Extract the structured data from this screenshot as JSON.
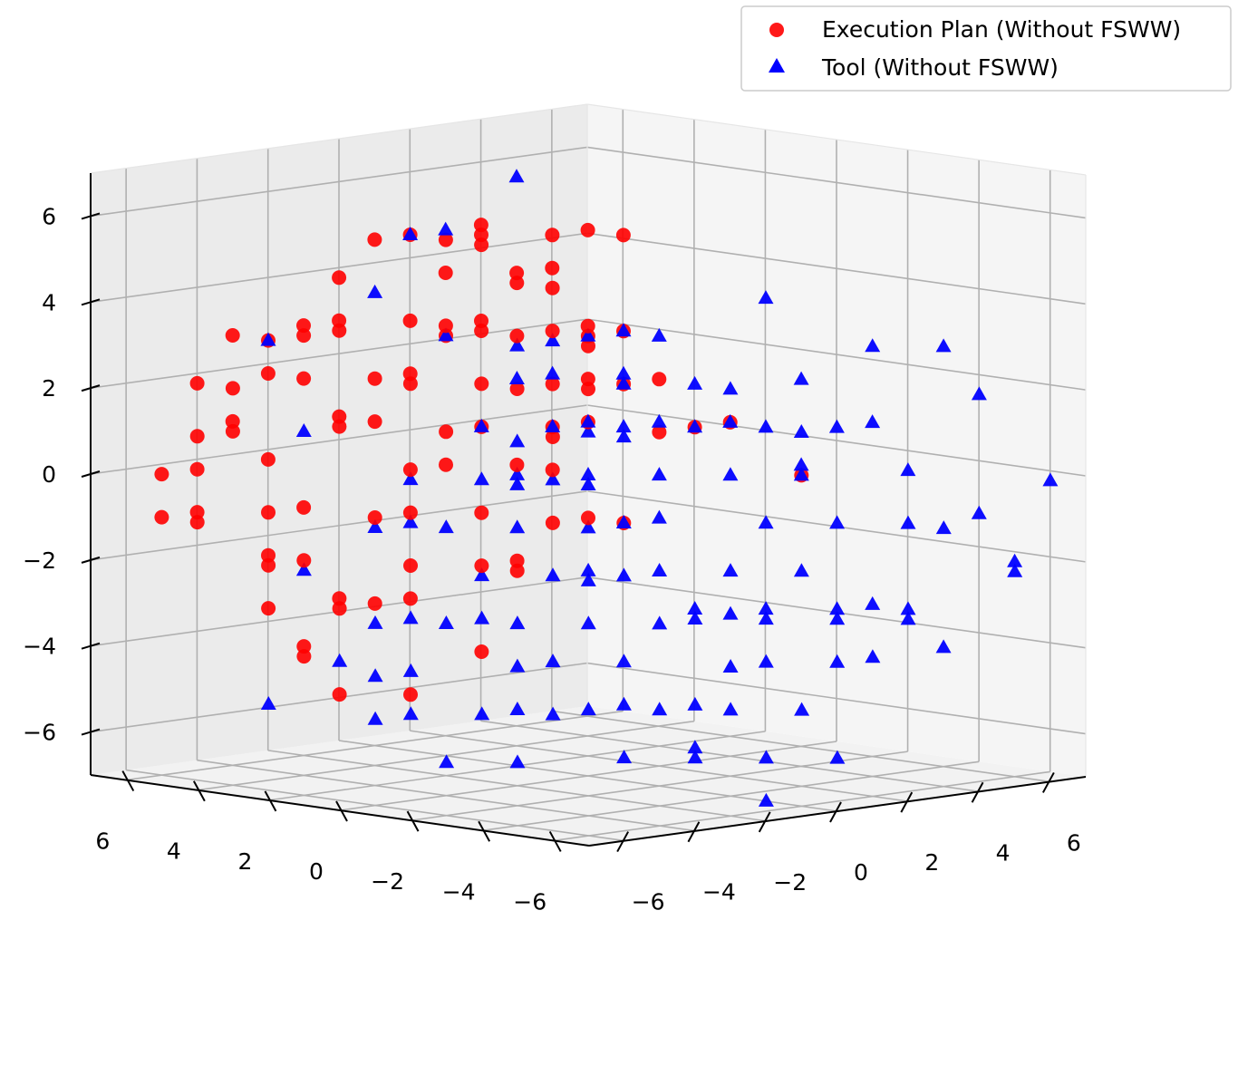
{
  "chart_data": {
    "type": "scatter",
    "projection": "3d",
    "title": "",
    "xlabel": "",
    "ylabel": "",
    "zlabel": "",
    "xlim": [
      -7,
      7
    ],
    "ylim": [
      -7,
      7
    ],
    "zlim": [
      -7,
      7
    ],
    "grid": true,
    "legend_position": "top-right",
    "axis_ticks": {
      "x": [
        "−6",
        "−4",
        "−2",
        "0",
        "2",
        "4",
        "6"
      ],
      "y": [
        "6",
        "4",
        "2",
        "0",
        "−2",
        "−4",
        "−6"
      ],
      "z": [
        "−6",
        "−4",
        "−2",
        "0",
        "2",
        "4",
        "6"
      ]
    },
    "series": [
      {
        "name": "Execution Plan (Without FSWW)",
        "marker": "circle",
        "color": "#ff0000",
        "points": [
          [
            -1,
            6,
            4
          ],
          [
            0,
            5,
            5
          ],
          [
            1,
            5,
            4
          ],
          [
            -1,
            5,
            5
          ],
          [
            0,
            4,
            5
          ],
          [
            -2,
            6,
            3
          ],
          [
            -2,
            5,
            3
          ],
          [
            0,
            4,
            3
          ],
          [
            1,
            4,
            3
          ],
          [
            -3,
            6,
            2
          ],
          [
            -3,
            6,
            0
          ],
          [
            -4,
            6,
            1
          ],
          [
            -4,
            5,
            -1
          ],
          [
            -4,
            5,
            -2
          ],
          [
            -5,
            6,
            -1
          ],
          [
            -5,
            6,
            0
          ],
          [
            -5,
            5,
            1
          ],
          [
            -4,
            4,
            -2
          ],
          [
            -3,
            4,
            -3
          ],
          [
            -3,
            3,
            -3
          ],
          [
            -2,
            3,
            -1
          ],
          [
            -2,
            3,
            -3
          ],
          [
            -1,
            3,
            0
          ],
          [
            -1,
            2,
            -1
          ],
          [
            -1,
            1,
            -2
          ],
          [
            -2,
            2,
            1
          ],
          [
            -1,
            1,
            2
          ],
          [
            0,
            1,
            2
          ],
          [
            -1,
            0,
            1
          ],
          [
            0,
            0,
            2
          ],
          [
            1,
            1,
            3
          ],
          [
            1,
            0,
            2
          ],
          [
            2,
            0,
            2
          ],
          [
            2,
            -1,
            1
          ],
          [
            3,
            -1,
            1
          ],
          [
            3,
            -3,
            0
          ],
          [
            3,
            2,
            5
          ],
          [
            2,
            3,
            5
          ],
          [
            2,
            2,
            3
          ],
          [
            -3,
            5,
            3
          ],
          [
            -2,
            4,
            2
          ],
          [
            -4,
            3,
            -3
          ],
          [
            -5,
            4,
            -3
          ],
          [
            0,
            -1,
            -1
          ],
          [
            1,
            -1,
            1
          ],
          [
            -6,
            5,
            -1
          ],
          [
            -6,
            6,
            -1
          ],
          [
            -6,
            6,
            0
          ],
          [
            -6,
            5,
            1
          ],
          [
            -5,
            6,
            2
          ],
          [
            -5,
            5,
            2
          ],
          [
            -5,
            4,
            -2
          ],
          [
            -3,
            5,
            2
          ],
          [
            -3,
            4,
            1
          ],
          [
            -2,
            4,
            1
          ],
          [
            -2,
            3,
            0
          ],
          [
            -1,
            4,
            2
          ],
          [
            0,
            3,
            3
          ],
          [
            0,
            2,
            3
          ],
          [
            1,
            2,
            3
          ],
          [
            1,
            3,
            4
          ],
          [
            2,
            4,
            4
          ],
          [
            2,
            1,
            3
          ],
          [
            3,
            3,
            5
          ],
          [
            0,
            5,
            3
          ],
          [
            -1,
            6,
            3
          ],
          [
            -2,
            5,
            1
          ],
          [
            -3,
            5,
            -1
          ],
          [
            -4,
            4,
            -4
          ],
          [
            -4,
            3,
            -5
          ],
          [
            -3,
            2,
            -5
          ],
          [
            -2,
            1,
            -4
          ],
          [
            -2,
            1,
            -2
          ],
          [
            -2,
            0,
            -2
          ],
          [
            -1,
            0,
            -1
          ],
          [
            0,
            0,
            -1
          ],
          [
            0,
            2,
            0
          ],
          [
            0,
            1,
            0
          ],
          [
            1,
            1,
            1
          ],
          [
            -4,
            6,
            3
          ],
          [
            -4,
            5,
            3
          ],
          [
            0,
            3,
            5
          ],
          [
            1,
            4,
            5
          ],
          [
            2,
            5,
            5
          ],
          [
            3,
            4,
            4
          ],
          [
            -5,
            3,
            -4
          ],
          [
            -1,
            2,
            1
          ],
          [
            -2,
            3,
            2
          ],
          [
            0,
            1,
            1
          ],
          [
            0,
            0,
            3
          ],
          [
            1,
            2,
            4
          ],
          [
            1,
            1,
            2
          ],
          [
            -3,
            3,
            -1
          ],
          [
            -3,
            2,
            -2
          ],
          [
            -1,
            3,
            3
          ],
          [
            -1,
            2,
            2
          ]
        ]
      },
      {
        "name": "Tool (Without FSWW)",
        "marker": "triangle",
        "color": "#0000ff",
        "points": [
          [
            1,
            5,
            5
          ],
          [
            0,
            5,
            5
          ],
          [
            3,
            5,
            6
          ],
          [
            -4,
            5,
            3
          ],
          [
            -2,
            4,
            4
          ],
          [
            -1,
            3,
            3
          ],
          [
            -1,
            1,
            3
          ],
          [
            0,
            1,
            3
          ],
          [
            1,
            1,
            3
          ],
          [
            2,
            1,
            3
          ],
          [
            2,
            0,
            3
          ],
          [
            1,
            0,
            2
          ],
          [
            2,
            -1,
            2
          ],
          [
            3,
            -2,
            4
          ],
          [
            4,
            -4,
            3
          ],
          [
            5,
            -6,
            2
          ],
          [
            2,
            -2,
            2
          ],
          [
            0,
            0,
            1
          ],
          [
            0,
            -1,
            1
          ],
          [
            -1,
            0,
            0
          ],
          [
            -2,
            1,
            0
          ],
          [
            -3,
            2,
            -1
          ],
          [
            -2,
            0,
            -1
          ],
          [
            -3,
            0,
            -2
          ],
          [
            -4,
            1,
            -3
          ],
          [
            -5,
            2,
            -4
          ],
          [
            -6,
            3,
            -5
          ],
          [
            -5,
            0,
            -5
          ],
          [
            -4,
            -1,
            -5
          ],
          [
            -3,
            -1,
            -5
          ],
          [
            -2,
            -2,
            -5
          ],
          [
            -1,
            -2,
            -5
          ],
          [
            0,
            -3,
            -6
          ],
          [
            0,
            -3,
            -5
          ],
          [
            1,
            -2,
            -3
          ],
          [
            1,
            -3,
            -3
          ],
          [
            2,
            -3,
            -3
          ],
          [
            2,
            -4,
            -2
          ],
          [
            3,
            -4,
            -1
          ],
          [
            4,
            -5,
            -1
          ],
          [
            4,
            -6,
            -1
          ],
          [
            5,
            -7,
            -2
          ],
          [
            3,
            -6,
            -3
          ],
          [
            2,
            -5,
            -3
          ],
          [
            1,
            -4,
            -4
          ],
          [
            0,
            -4,
            -4
          ],
          [
            0,
            -2,
            -2
          ],
          [
            -1,
            -1,
            -2
          ],
          [
            -1,
            -1,
            -1
          ],
          [
            0,
            -1,
            -1
          ],
          [
            -2,
            -1,
            -2
          ],
          [
            -3,
            0,
            -3
          ],
          [
            -2,
            -1,
            -4
          ],
          [
            -1,
            -2,
            -4
          ],
          [
            -3,
            -1,
            -4
          ],
          [
            -1,
            -3,
            -5
          ],
          [
            0,
            -4,
            -5
          ],
          [
            1,
            -3,
            -2
          ],
          [
            2,
            -3,
            -1
          ],
          [
            3,
            -3,
            0
          ],
          [
            3,
            -3,
            1
          ],
          [
            2,
            -2,
            0
          ],
          [
            1,
            -1,
            0
          ],
          [
            1,
            -1,
            -1
          ],
          [
            0,
            0,
            0
          ],
          [
            -1,
            -1,
            0
          ],
          [
            -2,
            0,
            0
          ],
          [
            -4,
            4,
            1
          ],
          [
            -5,
            3,
            -2
          ],
          [
            -4,
            2,
            -1
          ],
          [
            -3,
            1,
            -1
          ],
          [
            -2,
            0,
            1
          ],
          [
            0,
            1,
            1
          ],
          [
            1,
            1,
            1
          ],
          [
            2,
            -1,
            1
          ],
          [
            3,
            -2,
            1
          ],
          [
            4,
            -3,
            1
          ],
          [
            5,
            -3,
            1
          ],
          [
            5,
            -4,
            0
          ],
          [
            6,
            -5,
            -1
          ],
          [
            4,
            -5,
            -3
          ],
          [
            3,
            -5,
            -4
          ],
          [
            2,
            -5,
            -4
          ],
          [
            1,
            -5,
            -5
          ],
          [
            0,
            -5,
            -6
          ],
          [
            -1,
            -3,
            -3
          ],
          [
            -2,
            -2,
            -3
          ],
          [
            -3,
            -2,
            -5
          ],
          [
            -4,
            0,
            -3
          ],
          [
            -5,
            1,
            -3
          ],
          [
            -3,
            2,
            0
          ],
          [
            -1,
            1,
            0
          ],
          [
            1,
            0,
            1
          ],
          [
            2,
            0,
            1
          ],
          [
            3,
            -1,
            1
          ],
          [
            4,
            -2,
            2
          ],
          [
            5,
            -5,
            3
          ],
          [
            6,
            -7,
            0
          ],
          [
            6,
            -6,
            -2
          ],
          [
            5,
            -5,
            -4
          ],
          [
            4,
            -4,
            -3
          ],
          [
            3,
            -4,
            -3
          ],
          [
            1,
            -4,
            -3
          ],
          [
            0,
            -3,
            -3
          ],
          [
            -1,
            -2,
            -2
          ],
          [
            -2,
            -2,
            -2
          ],
          [
            -3,
            -1,
            -3
          ],
          [
            -2,
            -3,
            -6
          ],
          [
            -1,
            -4,
            -6
          ],
          [
            0,
            -5,
            -7
          ],
          [
            1,
            -6,
            -6
          ],
          [
            -5,
            -1,
            -6
          ],
          [
            -4,
            -2,
            -6
          ],
          [
            -6,
            0,
            -5
          ],
          [
            -6,
            0,
            -4
          ],
          [
            -5,
            0,
            -4
          ],
          [
            4,
            -2,
            0
          ],
          [
            2,
            1,
            2
          ],
          [
            1,
            2,
            2
          ],
          [
            0,
            2,
            2
          ],
          [
            -1,
            2,
            1
          ]
        ]
      }
    ]
  },
  "legend": {
    "items": [
      {
        "label": "Execution Plan (Without FSWW)",
        "color": "#ff0000",
        "marker": "circle"
      },
      {
        "label": "Tool (Without FSWW)",
        "color": "#0000ff",
        "marker": "triangle"
      }
    ]
  }
}
